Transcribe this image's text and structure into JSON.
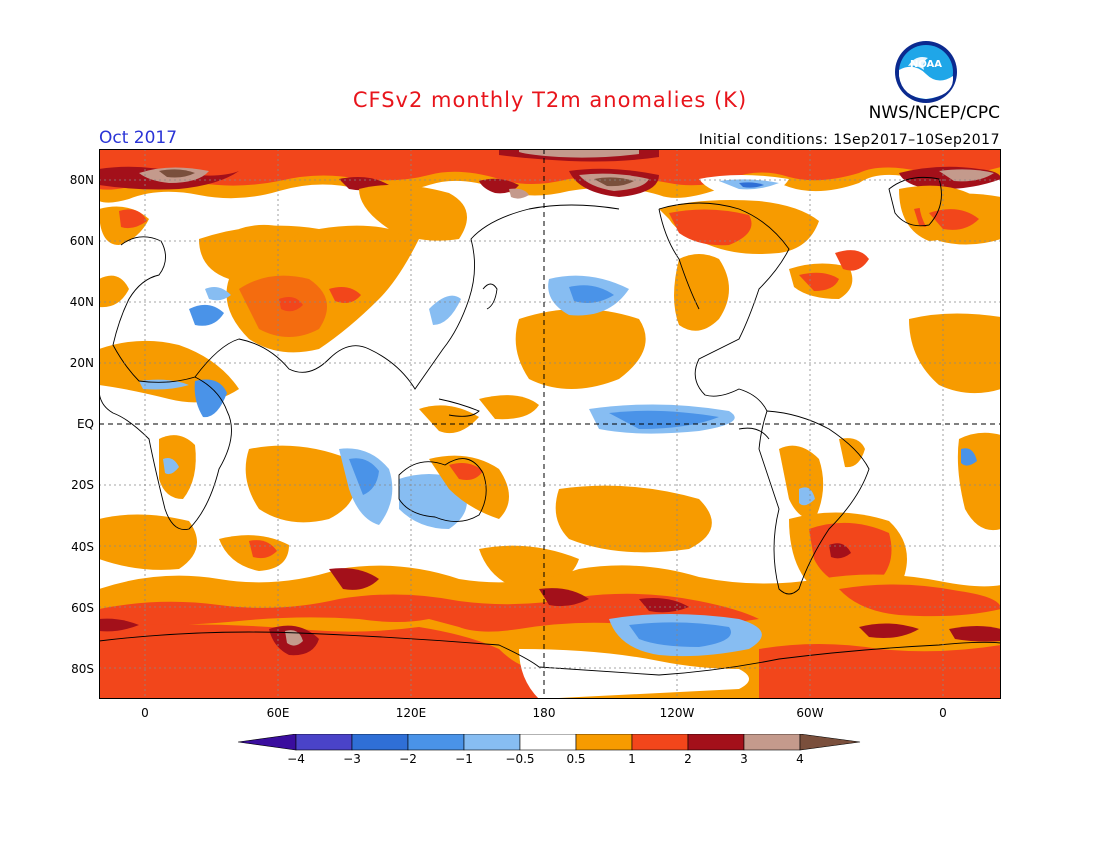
{
  "header": {
    "title": "CFSv2 monthly T2m anomalies (K)",
    "month": "Oct 2017",
    "initial_conditions": "Initial conditions: 1Sep2017–10Sep2017",
    "agency": "NWS/NCEP/CPC",
    "logo_text": "NOAA"
  },
  "map": {
    "lat_labels": [
      "80N",
      "60N",
      "40N",
      "20N",
      "EQ",
      "20S",
      "40S",
      "60S",
      "80S"
    ],
    "lon_labels": [
      "0",
      "60E",
      "120E",
      "180",
      "120W",
      "60W",
      "0"
    ],
    "colors": {
      "below_-4": "#3a0d9e",
      "-4_-3": "#4a43c8",
      "-3_-2": "#2f6fd6",
      "-2_-1": "#4a93e8",
      "-1_-0.5": "#87bdf2",
      "-0.5_0.5": "#ffffff",
      "0.5_1": "#f79b00",
      "1_2": "#f2461b",
      "2_3": "#a3101a",
      "3_4": "#c49a8c",
      "above_4": "#7a4f3c"
    }
  },
  "colorbar": {
    "labels": [
      "−4",
      "−3",
      "−2",
      "−1",
      "−0.5",
      "0.5",
      "1",
      "2",
      "3",
      "4"
    ]
  }
}
